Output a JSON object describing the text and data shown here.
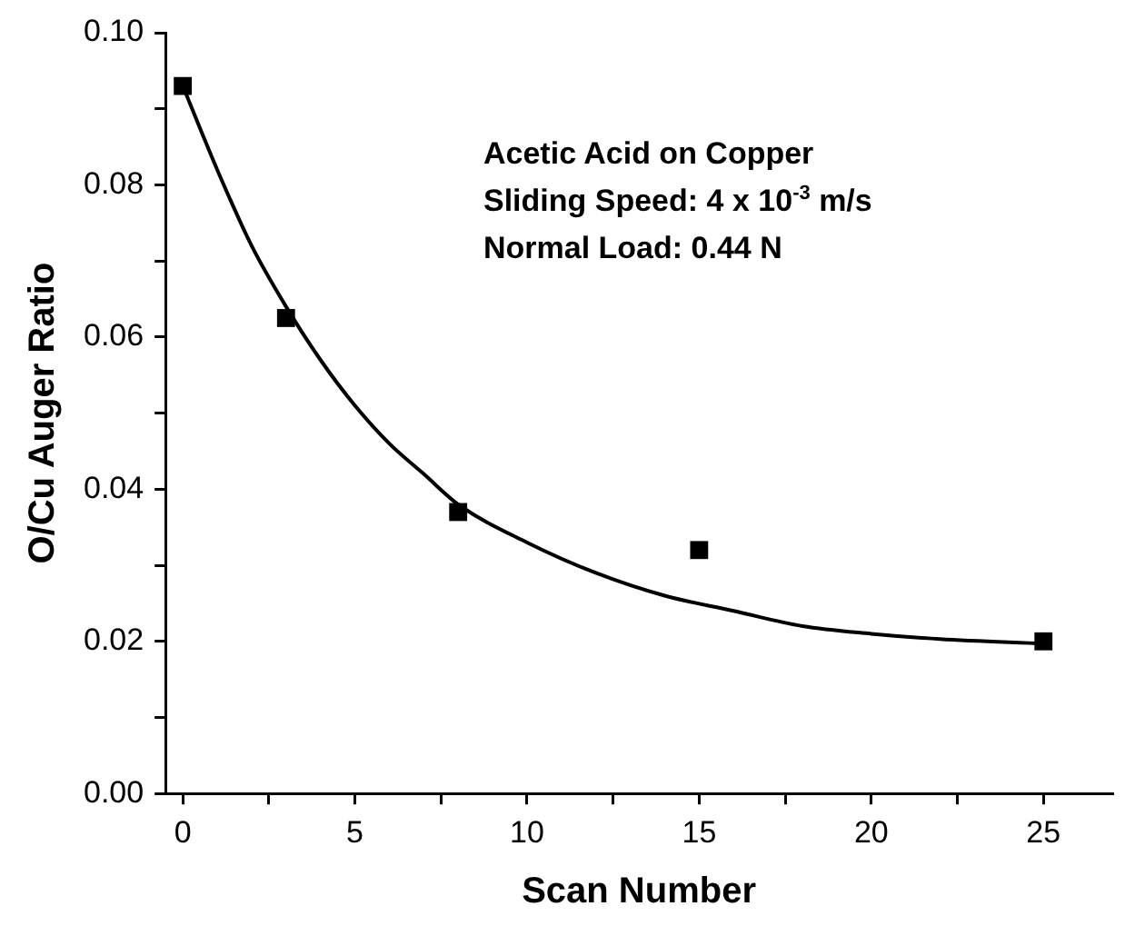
{
  "chart_data": {
    "type": "scatter",
    "xlabel": "Scan Number",
    "ylabel": "O/Cu Auger Ratio",
    "xlim": [
      -0.5,
      27
    ],
    "xticks": [
      0,
      {
        "value": 2.5,
        "label": null
      },
      5,
      {
        "value": 7.5,
        "label": null
      },
      10,
      {
        "value": 12.5,
        "label": null
      },
      15,
      {
        "value": 17.5,
        "label": null
      },
      20,
      {
        "value": 22.5,
        "label": null
      },
      25
    ],
    "ylim": [
      0,
      0.1
    ],
    "yticks": [
      "0.00",
      {
        "value": 0.01,
        "label": null
      },
      {
        "value": 0.02,
        "label": "0.02"
      },
      {
        "value": 0.03,
        "label": null
      },
      {
        "value": 0.04,
        "label": "0.04"
      },
      {
        "value": 0.05,
        "label": null
      },
      {
        "value": 0.06,
        "label": "0.06"
      },
      {
        "value": 0.07,
        "label": null
      },
      {
        "value": 0.08,
        "label": "0.08"
      },
      {
        "value": 0.09,
        "label": null
      },
      {
        "value": 0.1,
        "label": "0.10"
      }
    ],
    "grid": false,
    "series": [
      {
        "type": "scatter",
        "marker": "square",
        "color": "#000000",
        "x": [
          0,
          3,
          8,
          15,
          25
        ],
        "values": [
          0.093,
          0.0625,
          0.037,
          0.032,
          0.02
        ]
      },
      {
        "type": "line",
        "marker": "none",
        "color": "#000000",
        "x": [
          0,
          1,
          2,
          3,
          4,
          5,
          6,
          7,
          8,
          10,
          12,
          14,
          16,
          18,
          20,
          22,
          25
        ],
        "values": [
          0.093,
          0.082,
          0.072,
          0.064,
          0.057,
          0.051,
          0.046,
          0.042,
          0.038,
          0.033,
          0.029,
          0.026,
          0.024,
          0.022,
          0.021,
          0.0203,
          0.0197
        ]
      }
    ],
    "annotations": [
      "Acetic Acid on Copper",
      "Sliding Speed: 4 x 10$^{-3}$ m/s",
      "Normal Load: 0.44 N"
    ]
  }
}
